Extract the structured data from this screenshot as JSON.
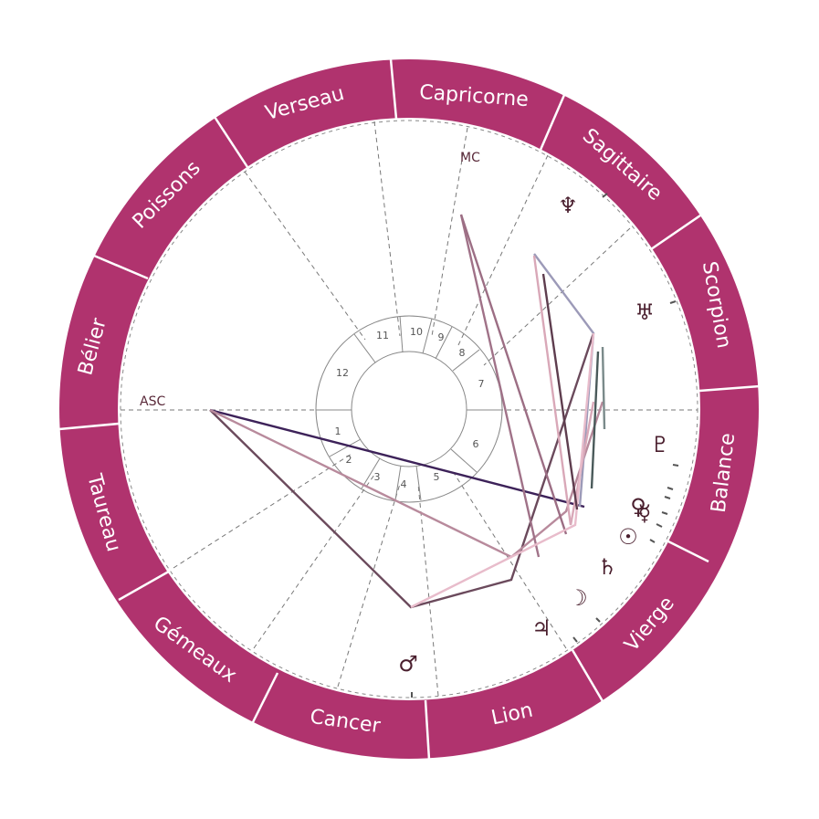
{
  "colors": {
    "zodiac_ring": "#b0336e",
    "zodiac_divider": "#ffffff",
    "sign_text": "#ffffff",
    "house_line": "#777777",
    "inner_circle": "#888888",
    "glyph": "#4a1f2e"
  },
  "zodiac": {
    "signs": [
      "Capricorne",
      "Sagittaire",
      "Scorpion",
      "Balance",
      "Vierge",
      "Lion",
      "Cancer",
      "Gémeaux",
      "Taureau",
      "Bélier",
      "Poissons",
      "Verseau"
    ]
  },
  "axes": {
    "asc_label": "ASC",
    "mc_label": "MC"
  },
  "houses": {
    "numbers": [
      "1",
      "2",
      "3",
      "4",
      "5",
      "6",
      "7",
      "8",
      "9",
      "10",
      "11",
      "12"
    ]
  },
  "planets": [
    {
      "name": "neptune",
      "glyph": "♆"
    },
    {
      "name": "uranus",
      "glyph": "♅"
    },
    {
      "name": "pluto",
      "glyph": "♇"
    },
    {
      "name": "venus",
      "glyph": "♀"
    },
    {
      "name": "mercury",
      "glyph": "☿"
    },
    {
      "name": "sun",
      "glyph": "☉"
    },
    {
      "name": "saturn",
      "glyph": "♄"
    },
    {
      "name": "moon",
      "glyph": "☽"
    },
    {
      "name": "jupiter",
      "glyph": "♃"
    },
    {
      "name": "mars",
      "glyph": "♂"
    }
  ]
}
